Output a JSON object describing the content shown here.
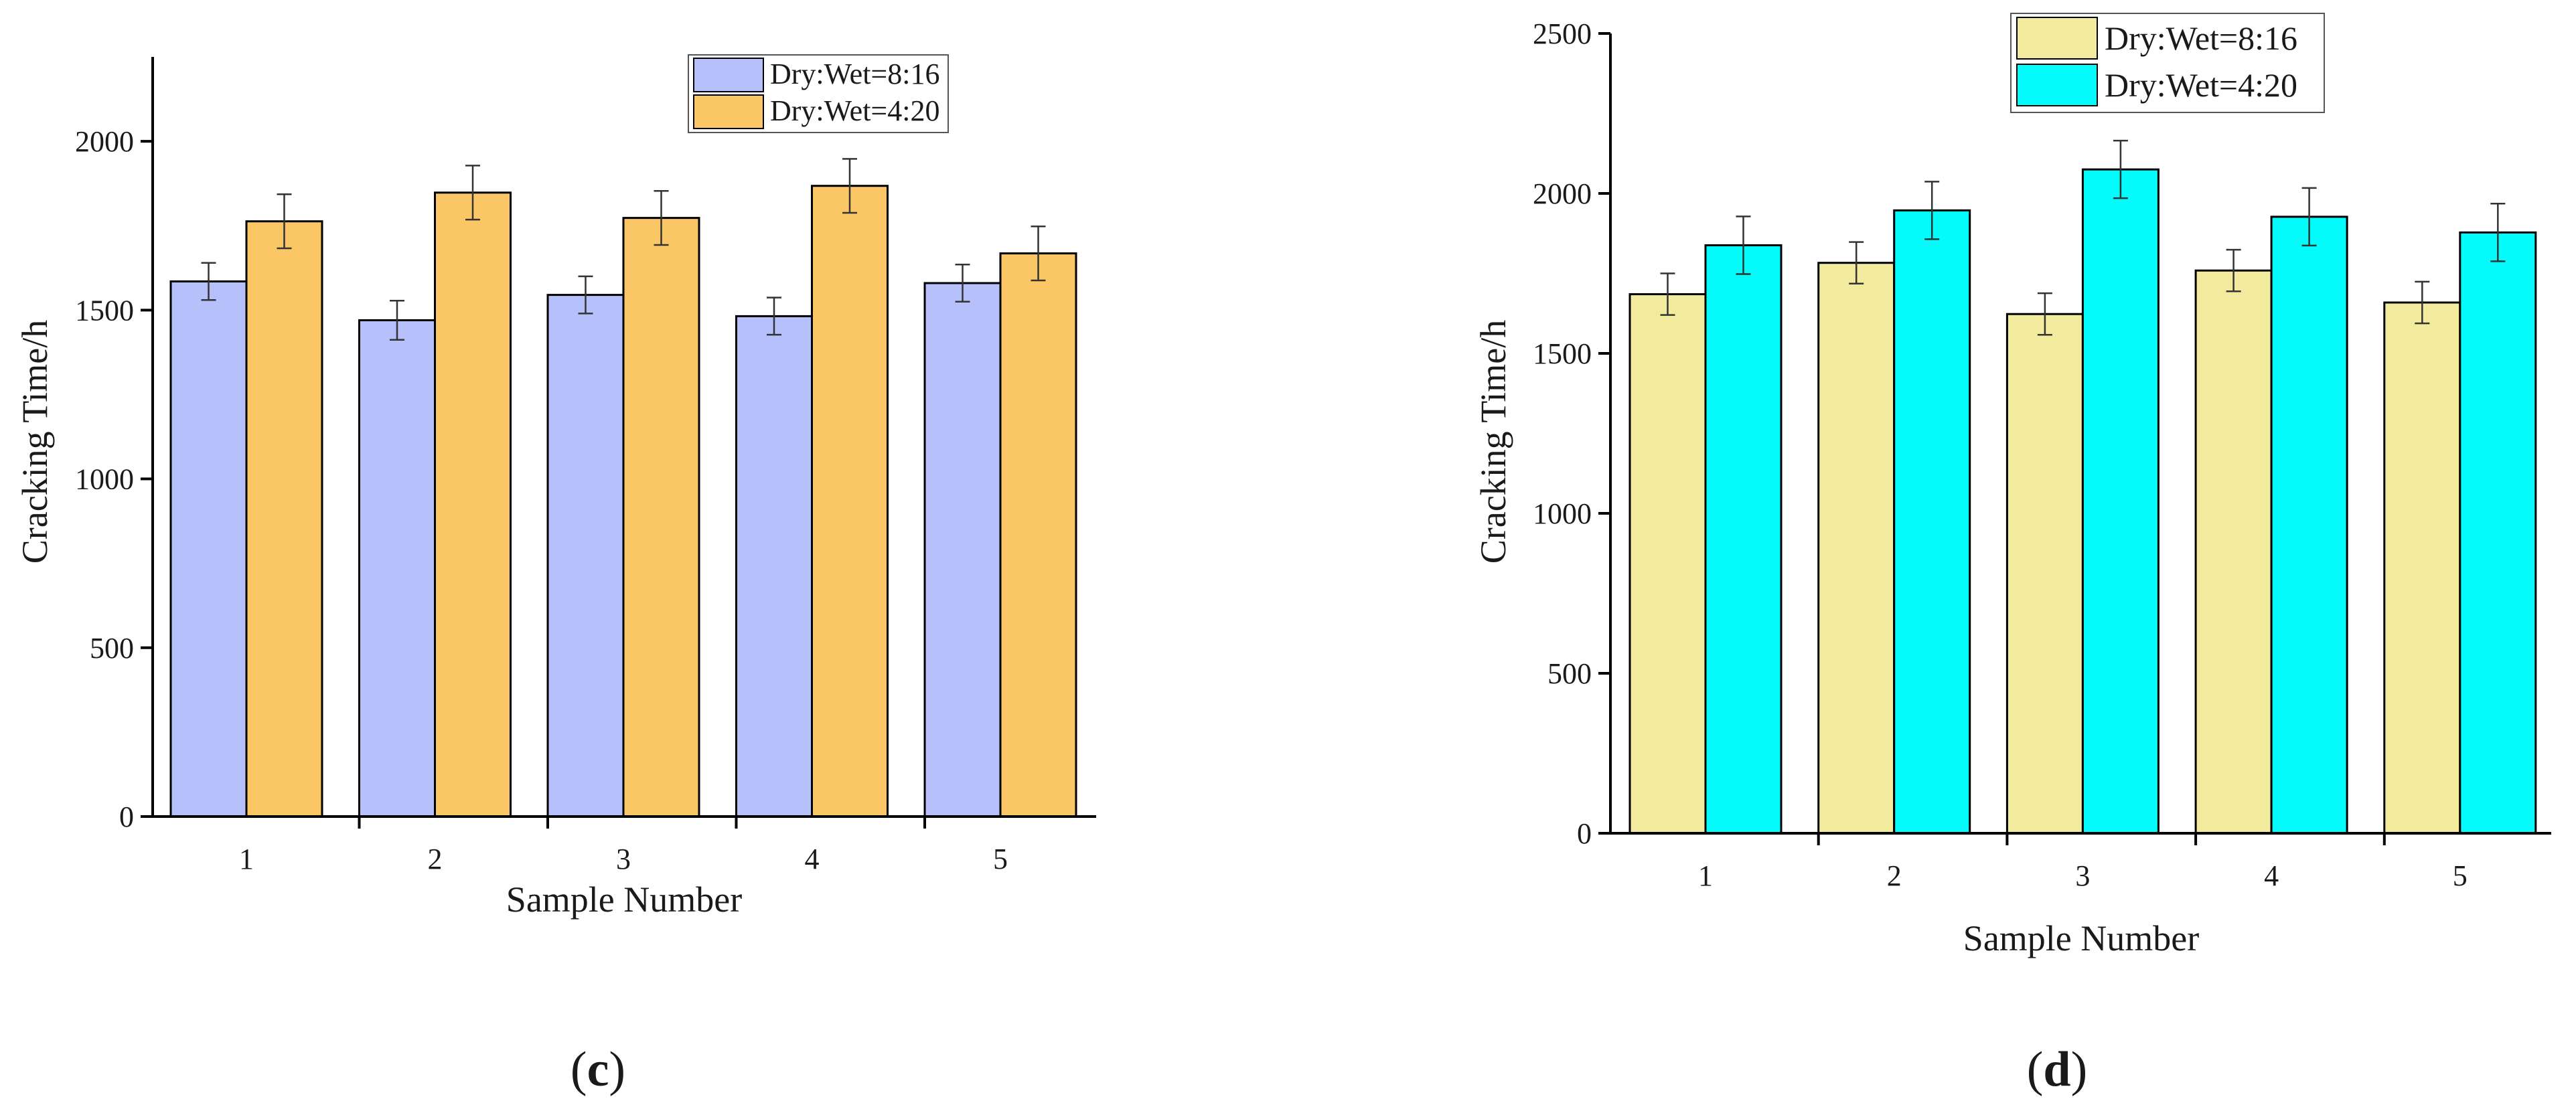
{
  "chart_data": [
    {
      "type": "bar",
      "panel_label": "c",
      "xlabel": "Sample Number",
      "ylabel": "Cracking Time/h",
      "categories": [
        "1",
        "2",
        "3",
        "4",
        "5"
      ],
      "ylim": [
        0,
        2250
      ],
      "yticks": [
        0,
        500,
        1000,
        1500,
        2000
      ],
      "series": [
        {
          "name": "Dry:Wet=8:16",
          "color": "#b6c0fb",
          "values": [
            1585,
            1470,
            1545,
            1482,
            1580
          ],
          "errors": [
            55,
            58,
            55,
            55,
            55
          ]
        },
        {
          "name": "Dry:Wet=4:20",
          "color": "#fbc766",
          "values": [
            1763,
            1848,
            1773,
            1868,
            1668
          ],
          "errors": [
            80,
            80,
            80,
            80,
            80
          ]
        }
      ],
      "legend": "top-right"
    },
    {
      "type": "bar",
      "panel_label": "d",
      "xlabel": "Sample Number",
      "ylabel": "Cracking Time/h",
      "categories": [
        "1",
        "2",
        "3",
        "4",
        "5"
      ],
      "ylim": [
        0,
        2500
      ],
      "yticks": [
        0,
        500,
        1000,
        1500,
        2000,
        2500
      ],
      "series": [
        {
          "name": "Dry:Wet=8:16",
          "color": "#f2eb9e",
          "values": [
            1685,
            1783,
            1623,
            1759,
            1659
          ],
          "errors": [
            65,
            65,
            65,
            65,
            65
          ]
        },
        {
          "name": "Dry:Wet=4:20",
          "color": "#04fbfb",
          "values": [
            1838,
            1947,
            2075,
            1927,
            1878
          ],
          "errors": [
            90,
            90,
            90,
            90,
            90
          ]
        }
      ],
      "legend": "top-right"
    }
  ]
}
